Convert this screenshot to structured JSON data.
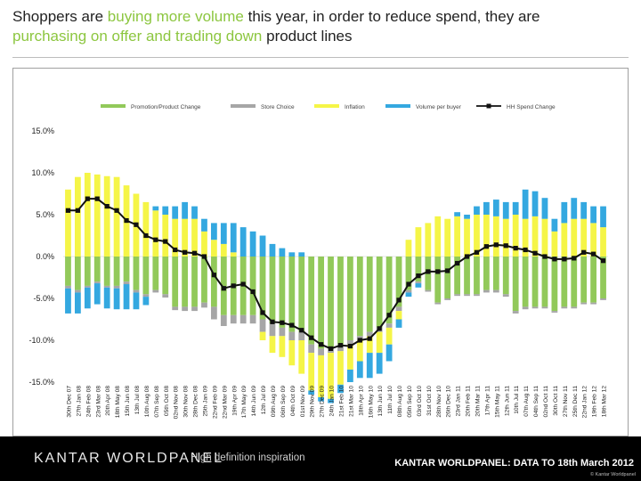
{
  "title": {
    "part1": "Shoppers are ",
    "part2": "buying more volume",
    "part3": " this year, in order to reduce spend, they are",
    "part4": "purchasing on offer and trading down",
    "part5": " product lines"
  },
  "footer": {
    "logo": "KANTAR WORLDPANEL",
    "tagline": "High definition inspiration",
    "data_note": "KANTAR WORLDPANEL: DATA TO 18th March 2012",
    "copyright": "© Kantar Worldpanel"
  },
  "colors": {
    "promotion": "#92c95a",
    "store": "#a6a6a6",
    "inflation": "#f5f547",
    "volume": "#34a8e0",
    "line": "#111111",
    "highlight": "#8cc63f"
  },
  "chart_data": {
    "type": "bar",
    "stacked": true,
    "ylim": [
      -15,
      15
    ],
    "yticks": [
      "15.0%",
      "10.0%",
      "5.0%",
      "0.0%",
      "-5.0%",
      "-10.0%",
      "-15.0%"
    ],
    "legend_position": "top",
    "categories": [
      "30th Dec 07",
      "27th Jan 08",
      "24th Feb 08",
      "23rd Mar 08",
      "20th Apr 08",
      "18th May 08",
      "15th Jun 08",
      "13th Jul 08",
      "10th Aug 08",
      "07th Sep 08",
      "05th Oct 08",
      "02nd Nov 08",
      "30th Nov 08",
      "28th Dec 08",
      "25th Jan 09",
      "22nd Feb 09",
      "22nd Mar 09",
      "19th Apr 09",
      "17th May 09",
      "14th Jun 09",
      "12th Jul 09",
      "09th Aug 09",
      "06th Sep 09",
      "04th Oct 09",
      "01st Nov 09",
      "29th Nov 09",
      "27th Dec 09",
      "24th Jan 10",
      "21st Feb 10",
      "21st Mar 10",
      "18th Apr 10",
      "16th May 10",
      "13th Jun 10",
      "11th Jul 10",
      "08th Aug 10",
      "05th Sep 10",
      "03rd Oct 10",
      "31st Oct 10",
      "28th Nov 10",
      "26th Dec 10",
      "23rd Jan 11",
      "20th Feb 11",
      "20th Mar 11",
      "17th Apr 11",
      "15th May 11",
      "12th Jun 11",
      "10th Jul 11",
      "07th Aug 11",
      "04th Sep 11",
      "02nd Oct 11",
      "30th Oct 11",
      "27th Nov 11",
      "25th Dec 11",
      "22nd Jan 12",
      "19th Feb 12",
      "18th Mar 12"
    ],
    "series": [
      {
        "name": "Promotion/Product Change",
        "kind": "bar",
        "color": "#92c95a",
        "values": [
          -3.5,
          -4,
          -3.5,
          -3,
          -3.5,
          -3.5,
          -3,
          -4,
          -4.5,
          -4,
          -4.5,
          -6,
          -6,
          -6,
          -5.5,
          -6,
          -7,
          -7,
          -7,
          -7,
          -7.5,
          -8,
          -8.5,
          -9,
          -9,
          -10.5,
          -11,
          -11,
          -10.5,
          -10,
          -9.5,
          -9,
          -8.5,
          -8,
          -6,
          -4,
          -3,
          -4,
          -5.5,
          -5,
          -4.5,
          -4.5,
          -4.5,
          -4,
          -4,
          -4.5,
          -6.5,
          -6,
          -6,
          -6,
          -6.5,
          -6,
          -6,
          -5.5,
          -5.5,
          -5
        ]
      },
      {
        "name": "Store Choice",
        "kind": "bar",
        "color": "#a6a6a6",
        "values": [
          -0.3,
          -0.3,
          -0.2,
          -0.2,
          -0.2,
          -0.3,
          -0.3,
          -0.3,
          -0.3,
          -0.3,
          -0.4,
          -0.4,
          -0.5,
          -0.5,
          -0.6,
          -1.5,
          -1.3,
          -1,
          -1,
          -1,
          -1.5,
          -1.5,
          -1,
          -1,
          -1,
          -1,
          -0.8,
          -0.5,
          -0.8,
          -0.5,
          -0.5,
          -0.5,
          -0.5,
          -0.5,
          -0.5,
          -0.3,
          -0.2,
          -0.2,
          -0.2,
          -0.2,
          -0.2,
          -0.2,
          -0.2,
          -0.3,
          -0.3,
          -0.3,
          -0.3,
          -0.3,
          -0.2,
          -0.2,
          -0.2,
          -0.2,
          -0.2,
          -0.2,
          -0.2,
          -0.2
        ]
      },
      {
        "name": "Inflation",
        "kind": "bar",
        "color": "#f5f547",
        "values": [
          8,
          9.5,
          10,
          9.8,
          9.6,
          9.5,
          8.5,
          7.5,
          6.5,
          5.5,
          5,
          4.5,
          4.5,
          4.5,
          3,
          2,
          1.5,
          0.5,
          0,
          0,
          -1,
          -2,
          -2.5,
          -3,
          -4,
          -4.5,
          -5,
          -5.5,
          -4,
          -3,
          -2.5,
          -2,
          -2.5,
          -2,
          -1,
          2,
          3.5,
          4,
          4.8,
          4.5,
          4.8,
          4.5,
          5,
          5,
          4.8,
          4.5,
          5,
          4.5,
          4.8,
          4.5,
          3,
          4,
          4.5,
          4.5,
          4,
          3.5
        ]
      },
      {
        "name": "Volume per buyer",
        "kind": "bar",
        "color": "#34a8e0",
        "values": [
          -3,
          -2.5,
          -2.5,
          -2.5,
          -2.5,
          -2.5,
          -3,
          -2,
          -1,
          0.5,
          1,
          1.5,
          2,
          1.5,
          1.5,
          2,
          2.5,
          3.5,
          3.5,
          3,
          2.5,
          1.5,
          1,
          0.5,
          0.5,
          -0.5,
          -0.5,
          -0.5,
          -1,
          -1.5,
          -2,
          -3,
          -2.5,
          -2,
          -1,
          -0.5,
          -0.5,
          0,
          0,
          0,
          0.5,
          0.5,
          1,
          1.5,
          2,
          2,
          1.5,
          3.5,
          3,
          2.5,
          1.5,
          2.5,
          2.5,
          2,
          2,
          2.5
        ]
      },
      {
        "name": "HH Spend Change",
        "kind": "line",
        "color": "#111111",
        "values": [
          5.5,
          5.5,
          6.9,
          6.9,
          6,
          5.5,
          4.3,
          3.8,
          2.5,
          2,
          1.8,
          0.8,
          0.5,
          0.4,
          0,
          -2.2,
          -3.8,
          -3.5,
          -3.3,
          -4.2,
          -6.7,
          -7.8,
          -7.9,
          -8.2,
          -8.8,
          -9.7,
          -10.5,
          -11,
          -10.6,
          -10.7,
          -10,
          -9.8,
          -8.6,
          -7,
          -5.2,
          -3.3,
          -2.3,
          -1.8,
          -1.8,
          -1.7,
          -0.8,
          0,
          0.5,
          1.2,
          1.4,
          1.3,
          1,
          0.8,
          0.4,
          0,
          -0.3,
          -0.3,
          -0.2,
          0.5,
          0.3,
          -0.5
        ]
      }
    ]
  }
}
